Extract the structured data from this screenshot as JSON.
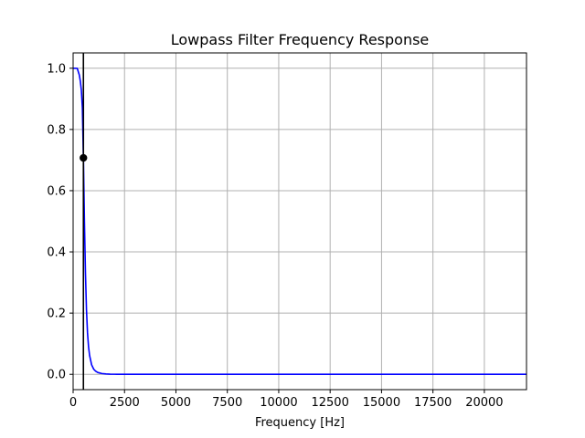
{
  "chart_data": {
    "type": "line",
    "title": "Lowpass Filter Frequency Response",
    "xlabel": "Frequency [Hz]",
    "ylabel": "",
    "xlim": [
      0,
      22050
    ],
    "ylim": [
      -0.05,
      1.05
    ],
    "grid": true,
    "x_ticks": [
      0,
      2500,
      5000,
      7500,
      10000,
      12500,
      15000,
      17500,
      20000
    ],
    "x_tick_labels": [
      "0",
      "2500",
      "5000",
      "7500",
      "10000",
      "12500",
      "15000",
      "17500",
      "20000"
    ],
    "y_ticks": [
      0.0,
      0.2,
      0.4,
      0.6,
      0.8,
      1.0
    ],
    "y_tick_labels": [
      "0.0",
      "0.2",
      "0.4",
      "0.6",
      "0.8",
      "1.0"
    ],
    "series": [
      {
        "color": "#0000ff",
        "x": [
          0,
          100,
          200,
          300,
          350,
          400,
          450,
          500,
          550,
          600,
          650,
          700,
          750,
          800,
          900,
          1000,
          1100,
          1200,
          1400,
          1600,
          1800,
          2000,
          2500,
          3000,
          5000,
          10000,
          15000,
          20000,
          22050
        ],
        "y": [
          1.0,
          1.0,
          0.9997,
          0.978,
          0.958,
          0.928,
          0.87,
          0.707,
          0.5,
          0.33,
          0.21,
          0.135,
          0.09,
          0.062,
          0.031,
          0.017,
          0.01,
          0.006,
          0.0025,
          0.0012,
          0.0006,
          0.0003,
          0.0001,
          0.0,
          0.0,
          0.0,
          0.0,
          0.0,
          0.0
        ]
      }
    ],
    "cutoff": {
      "x": 500,
      "y": 0.707,
      "line_color": "#000000",
      "marker_color": "#000000"
    }
  }
}
